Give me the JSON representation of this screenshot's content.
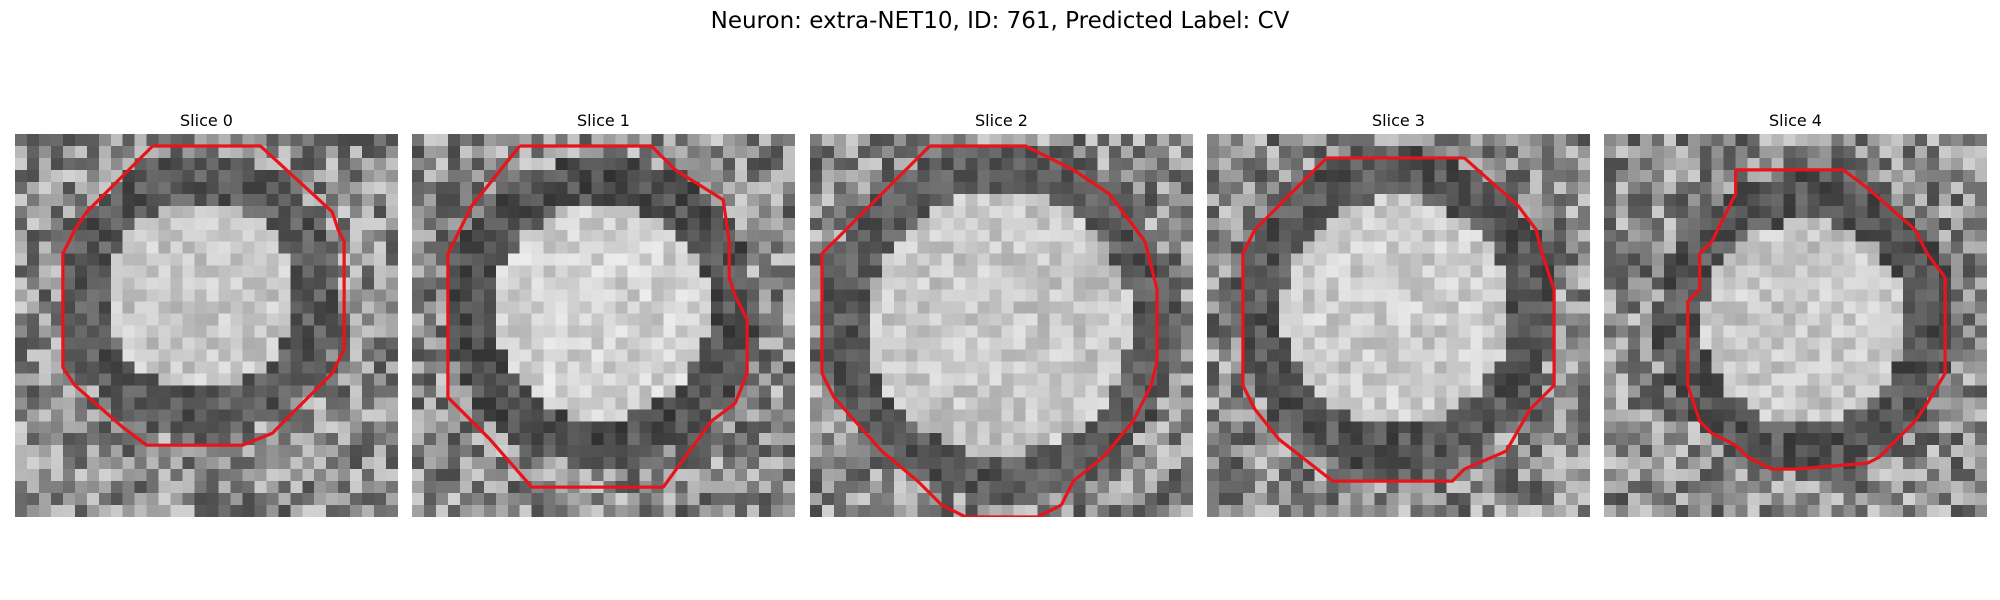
{
  "figure": {
    "title": "Neuron: extra-NET10, ID: 761, Predicted Label: CV"
  },
  "style": {
    "contour_color": "#e8141c",
    "colormap": "gray"
  },
  "slices": [
    {
      "label": "Slice 0",
      "ring_strength": 0.7,
      "interior_brightness": 0.78
    },
    {
      "label": "Slice 1",
      "ring_strength": 0.75,
      "interior_brightness": 0.82
    },
    {
      "label": "Slice 2",
      "ring_strength": 0.7,
      "interior_brightness": 0.78
    },
    {
      "label": "Slice 3",
      "ring_strength": 0.72,
      "interior_brightness": 0.8
    },
    {
      "label": "Slice 4",
      "ring_strength": 0.72,
      "interior_brightness": 0.78
    }
  ]
}
